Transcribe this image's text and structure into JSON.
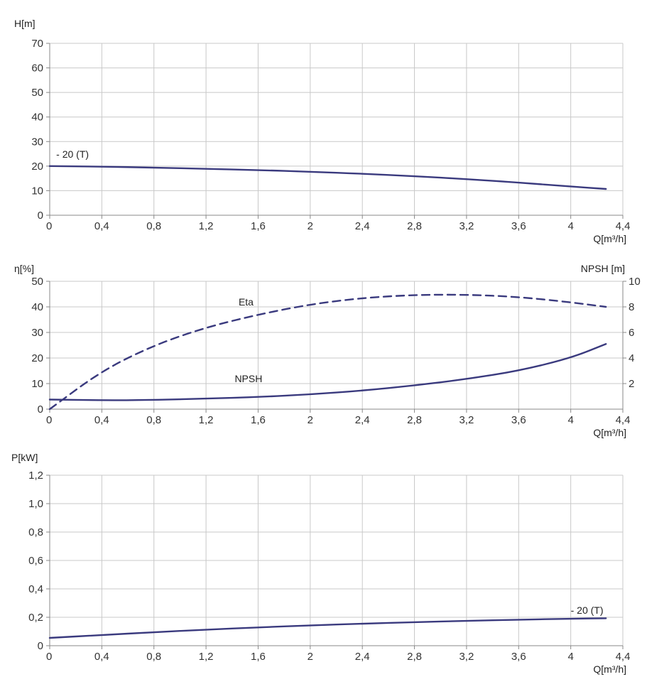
{
  "colors": {
    "curve": "#3a3a7e",
    "grid": "#c8c8c8",
    "axis": "#888888",
    "text": "#222222"
  },
  "chart_data": [
    {
      "id": "head",
      "type": "line",
      "ylabel": "H[m]",
      "xlabel": "Q[m³/h]",
      "xlim": [
        0,
        4.4
      ],
      "ylim": [
        0,
        70
      ],
      "x_ticks": [
        0,
        0.4,
        0.8,
        1.2,
        1.6,
        2,
        2.4,
        2.8,
        3.2,
        3.6,
        4,
        4.4
      ],
      "x_tick_labels": [
        "0",
        "0,4",
        "0,8",
        "1,2",
        "1,6",
        "2",
        "2,4",
        "2,8",
        "3,2",
        "3,6",
        "4",
        "4,4"
      ],
      "y_ticks": [
        0,
        10,
        20,
        30,
        40,
        50,
        60,
        70
      ],
      "y_tick_labels": [
        "0",
        "10",
        "20",
        "30",
        "40",
        "50",
        "60",
        "70"
      ],
      "grid": true,
      "series": [
        {
          "name": "- 20 (T)",
          "style": "solid",
          "x": [
            0,
            0.4,
            0.8,
            1.2,
            1.6,
            2.0,
            2.4,
            2.8,
            3.2,
            3.6,
            4.0,
            4.27
          ],
          "y": [
            20,
            19.8,
            19.4,
            18.9,
            18.4,
            17.7,
            16.9,
            15.9,
            14.7,
            13.3,
            11.7,
            10.7
          ]
        }
      ],
      "annotations": [
        {
          "text": "- 20 (T)",
          "x": 0.05,
          "y": 23.5
        }
      ]
    },
    {
      "id": "efficiency",
      "type": "line",
      "ylabel": "η[%]",
      "ylabel_right": "NPSH [m]",
      "xlabel": "Q[m³/h]",
      "xlim": [
        0,
        4.4
      ],
      "ylim": [
        0,
        50
      ],
      "ylim_right": [
        0,
        10
      ],
      "x_ticks": [
        0,
        0.4,
        0.8,
        1.2,
        1.6,
        2,
        2.4,
        2.8,
        3.2,
        3.6,
        4,
        4.4
      ],
      "x_tick_labels": [
        "0",
        "0,4",
        "0,8",
        "1,2",
        "1,6",
        "2",
        "2,4",
        "2,8",
        "3,2",
        "3,6",
        "4",
        "4,4"
      ],
      "y_ticks": [
        0,
        10,
        20,
        30,
        40,
        50
      ],
      "y_tick_labels": [
        "0",
        "10",
        "20",
        "30",
        "40",
        "50"
      ],
      "y_right_ticks": [
        2,
        4,
        6,
        8,
        10
      ],
      "y_right_tick_labels": [
        "2",
        "4",
        "6",
        "8",
        "10"
      ],
      "grid": true,
      "series": [
        {
          "name": "Eta",
          "style": "dashed",
          "axis": "left",
          "x": [
            0,
            0.4,
            0.8,
            1.2,
            1.6,
            2.0,
            2.4,
            2.8,
            3.2,
            3.6,
            4.0,
            4.27
          ],
          "y": [
            0,
            15,
            25,
            32,
            37,
            41,
            43.5,
            44.7,
            44.8,
            43.9,
            41.8,
            40
          ]
        },
        {
          "name": "NPSH",
          "style": "solid",
          "axis": "right",
          "x": [
            0,
            0.4,
            0.7,
            1.2,
            1.6,
            2.0,
            2.4,
            2.8,
            3.2,
            3.6,
            4.0,
            4.27
          ],
          "y": [
            0.75,
            0.7,
            0.7,
            0.82,
            0.95,
            1.15,
            1.45,
            1.85,
            2.35,
            3.0,
            4.0,
            5.1
          ]
        }
      ],
      "annotations": [
        {
          "text": "Eta",
          "x": 1.45,
          "y": 40.5
        },
        {
          "text": "NPSH",
          "x": 1.42,
          "y": 10.5
        }
      ]
    },
    {
      "id": "power",
      "type": "line",
      "ylabel": "P[kW]",
      "xlabel": "Q[m³/h]",
      "xlim": [
        0,
        4.4
      ],
      "ylim": [
        0,
        1.2
      ],
      "x_ticks": [
        0,
        0.4,
        0.8,
        1.2,
        1.6,
        2,
        2.4,
        2.8,
        3.2,
        3.6,
        4,
        4.4
      ],
      "x_tick_labels": [
        "0",
        "0,4",
        "0,8",
        "1,2",
        "1,6",
        "2",
        "2,4",
        "2,8",
        "3,2",
        "3,6",
        "4",
        "4,4"
      ],
      "y_ticks": [
        0,
        0.2,
        0.4,
        0.6,
        0.8,
        1.0,
        1.2
      ],
      "y_tick_labels": [
        "0",
        "0,2",
        "0,4",
        "0,6",
        "0,8",
        "1,0",
        "1,2"
      ],
      "grid": true,
      "series": [
        {
          "name": "- 20 (T)",
          "style": "solid",
          "x": [
            0,
            0.4,
            0.8,
            1.2,
            1.6,
            2.0,
            2.4,
            2.8,
            3.2,
            3.6,
            4.0,
            4.27
          ],
          "y": [
            0.055,
            0.075,
            0.095,
            0.113,
            0.129,
            0.143,
            0.155,
            0.166,
            0.175,
            0.183,
            0.19,
            0.193
          ]
        }
      ],
      "annotations": [
        {
          "text": "- 20 (T)",
          "x": 4.0,
          "y": 0.225
        }
      ]
    }
  ]
}
